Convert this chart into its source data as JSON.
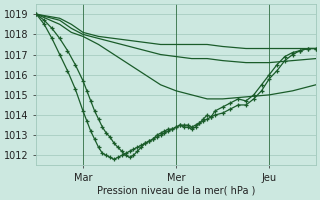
{
  "xlabel": "Pression niveau de la mer( hPa )",
  "background_color": "#cce8e0",
  "grid_color": "#a0c8bc",
  "line_color": "#1a5c2a",
  "ylim": [
    1011.5,
    1019.5
  ],
  "yticks": [
    1012,
    1013,
    1014,
    1015,
    1016,
    1017,
    1018,
    1019
  ],
  "xlim": [
    0,
    72
  ],
  "xtick_positions": [
    12,
    36,
    60
  ],
  "xtick_labels": [
    "Mar",
    "Mer",
    "Jeu"
  ],
  "lines": [
    {
      "x": [
        0,
        6,
        9,
        12,
        16,
        20,
        24,
        28,
        32,
        36,
        40,
        44,
        48,
        54,
        60,
        66,
        72
      ],
      "y": [
        1019.0,
        1018.8,
        1018.5,
        1018.1,
        1017.9,
        1017.8,
        1017.7,
        1017.6,
        1017.5,
        1017.5,
        1017.5,
        1017.5,
        1017.4,
        1017.3,
        1017.3,
        1017.3,
        1017.3
      ],
      "markers": false
    },
    {
      "x": [
        0,
        6,
        9,
        12,
        16,
        20,
        24,
        28,
        32,
        36,
        40,
        44,
        48,
        54,
        60,
        66,
        72
      ],
      "y": [
        1019.0,
        1018.7,
        1018.3,
        1018.0,
        1017.8,
        1017.6,
        1017.4,
        1017.2,
        1017.0,
        1016.9,
        1016.8,
        1016.8,
        1016.7,
        1016.6,
        1016.6,
        1016.7,
        1016.8
      ],
      "markers": false
    },
    {
      "x": [
        0,
        6,
        9,
        12,
        16,
        20,
        24,
        28,
        32,
        36,
        40,
        44,
        48,
        54,
        60,
        66,
        72
      ],
      "y": [
        1019.0,
        1018.5,
        1018.1,
        1017.9,
        1017.5,
        1017.0,
        1016.5,
        1016.0,
        1015.5,
        1015.2,
        1015.0,
        1014.8,
        1014.8,
        1014.9,
        1015.0,
        1015.2,
        1015.5
      ],
      "markers": false
    },
    {
      "x": [
        0,
        2,
        4,
        6,
        8,
        10,
        12,
        13,
        14,
        15,
        16,
        17,
        18,
        19,
        20,
        21,
        22,
        23,
        24,
        25,
        26,
        27,
        28,
        29,
        30,
        31,
        32,
        33,
        34,
        35,
        36,
        37,
        38,
        39,
        40,
        41,
        42,
        43,
        44,
        45,
        46,
        48,
        50,
        52,
        54,
        56,
        58,
        60,
        62,
        64,
        66,
        68,
        70,
        72
      ],
      "y": [
        1019.0,
        1018.7,
        1018.3,
        1017.8,
        1017.2,
        1016.5,
        1015.7,
        1015.2,
        1014.7,
        1014.2,
        1013.8,
        1013.4,
        1013.1,
        1012.9,
        1012.6,
        1012.4,
        1012.2,
        1012.0,
        1011.9,
        1012.0,
        1012.2,
        1012.4,
        1012.6,
        1012.7,
        1012.8,
        1012.9,
        1013.0,
        1013.1,
        1013.2,
        1013.3,
        1013.4,
        1013.5,
        1013.5,
        1013.5,
        1013.4,
        1013.5,
        1013.6,
        1013.7,
        1013.8,
        1013.9,
        1014.0,
        1014.1,
        1014.3,
        1014.5,
        1014.5,
        1014.8,
        1015.2,
        1015.8,
        1016.2,
        1016.7,
        1017.0,
        1017.2,
        1017.3,
        1017.3
      ],
      "markers": true
    },
    {
      "x": [
        0,
        2,
        4,
        6,
        8,
        10,
        12,
        13,
        14,
        15,
        16,
        17,
        18,
        19,
        20,
        21,
        22,
        23,
        24,
        25,
        26,
        27,
        28,
        29,
        30,
        31,
        32,
        33,
        34,
        35,
        36,
        37,
        38,
        39,
        40,
        41,
        42,
        43,
        44,
        45,
        46,
        48,
        50,
        52,
        54,
        56,
        58,
        60,
        62,
        64,
        66,
        68,
        70,
        72
      ],
      "y": [
        1019.0,
        1018.5,
        1017.8,
        1017.0,
        1016.2,
        1015.3,
        1014.2,
        1013.7,
        1013.2,
        1012.8,
        1012.4,
        1012.1,
        1012.0,
        1011.9,
        1011.8,
        1011.9,
        1012.0,
        1012.1,
        1012.2,
        1012.3,
        1012.4,
        1012.5,
        1012.6,
        1012.7,
        1012.8,
        1013.0,
        1013.1,
        1013.2,
        1013.3,
        1013.3,
        1013.4,
        1013.5,
        1013.4,
        1013.4,
        1013.3,
        1013.4,
        1013.6,
        1013.8,
        1014.0,
        1013.9,
        1014.2,
        1014.4,
        1014.6,
        1014.8,
        1014.7,
        1015.0,
        1015.5,
        1016.0,
        1016.5,
        1016.9,
        1017.1,
        1017.2,
        1017.3,
        1017.3
      ],
      "markers": true
    }
  ]
}
